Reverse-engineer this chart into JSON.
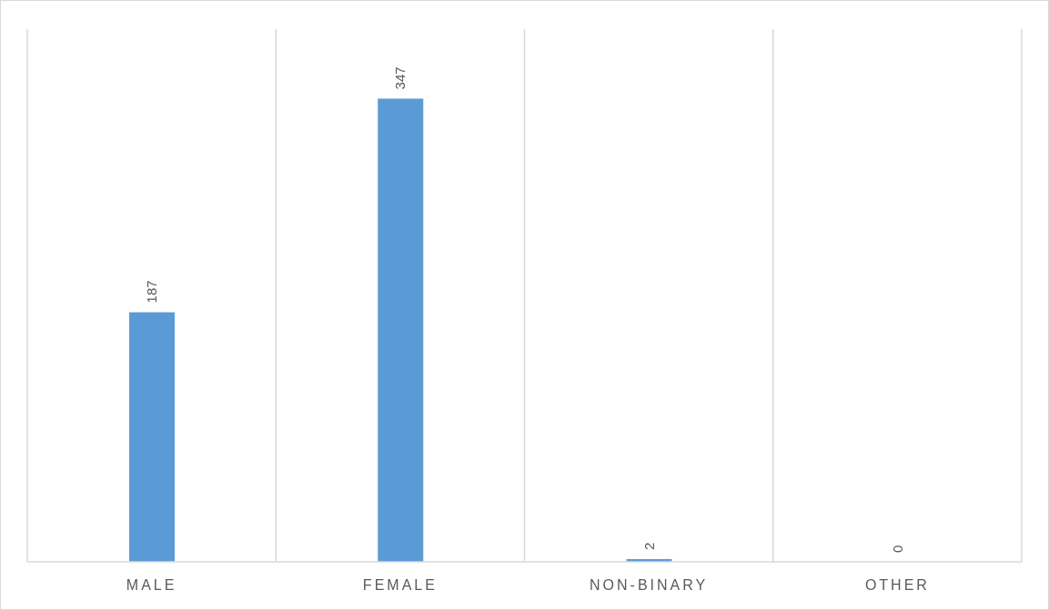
{
  "chart_data": {
    "type": "bar",
    "categories": [
      "MALE",
      "FEMALE",
      "NON-BINARY",
      "OTHER"
    ],
    "values": [
      187,
      347,
      2,
      0
    ],
    "color": "#5b9bd5",
    "data_labels": true,
    "grid": "x"
  }
}
